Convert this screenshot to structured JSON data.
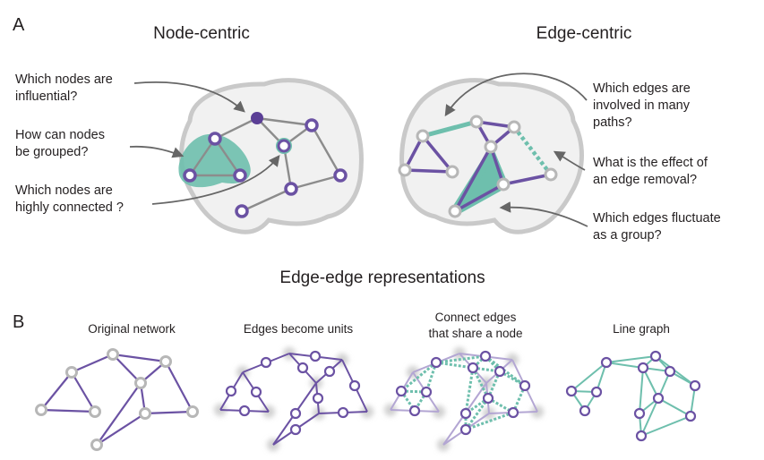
{
  "panel_a": {
    "label": "A",
    "left_title": "Node-centric",
    "right_title": "Edge-centric",
    "left_questions": [
      [
        "Which nodes are",
        "influential?"
      ],
      [
        "How can nodes",
        "be grouped?"
      ],
      [
        "Which nodes are",
        "highly connected ?"
      ]
    ],
    "right_questions": [
      [
        "Which edges are",
        "involved in many",
        "paths?"
      ],
      [
        "What is the effect of",
        "an edge removal?"
      ],
      [
        "Which edges fluctuate",
        "as a group?"
      ]
    ]
  },
  "section_title": "Edge-edge representations",
  "panel_b": {
    "label": "B",
    "steps": [
      [
        "Original network"
      ],
      [
        "Edges become units"
      ],
      [
        "Connect edges",
        "that share a node"
      ],
      [
        "Line graph"
      ]
    ]
  },
  "colors": {
    "purple": "#6b52a3",
    "dark_purple": "#5b3f96",
    "teal": "#6ebfad",
    "gray_node": "#b7b7b7",
    "brain_fill": "#f1f1f1",
    "brain_stroke": "#c9c9c9",
    "arrow": "#666666"
  }
}
